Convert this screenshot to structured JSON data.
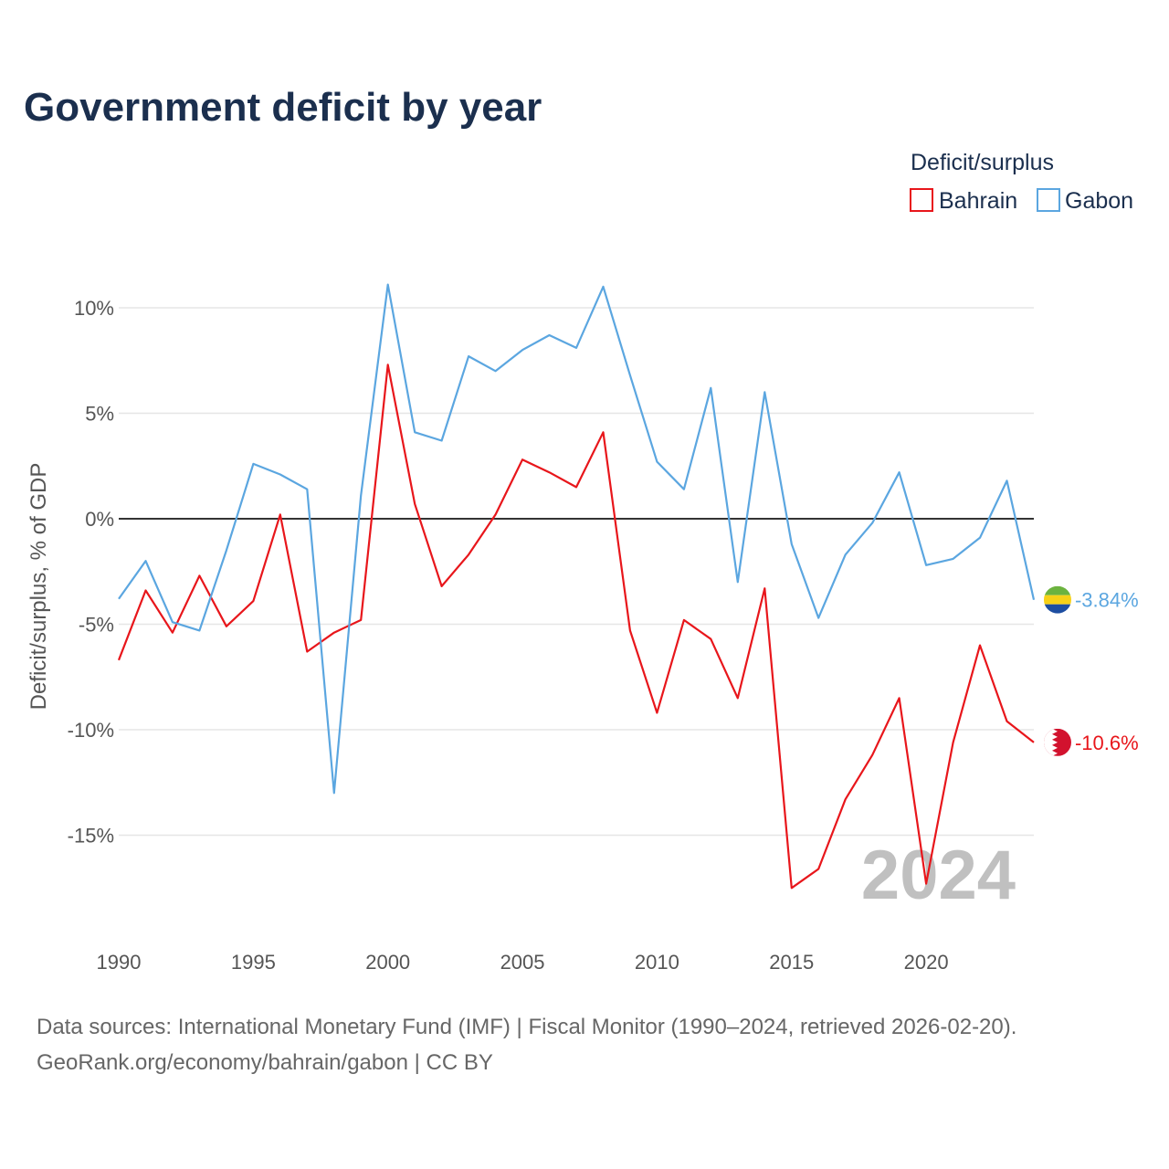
{
  "chart_data": {
    "type": "line",
    "title": "Government deficit by year",
    "ylabel": "Deficit/surplus, % of GDP",
    "xlabel": "",
    "legend_title": "Deficit/surplus",
    "x": [
      1990,
      1991,
      1992,
      1993,
      1994,
      1995,
      1996,
      1997,
      1998,
      1999,
      2000,
      2001,
      2002,
      2003,
      2004,
      2005,
      2006,
      2007,
      2008,
      2009,
      2010,
      2011,
      2012,
      2013,
      2014,
      2015,
      2016,
      2017,
      2018,
      2019,
      2020,
      2021,
      2022,
      2023,
      2024
    ],
    "xlim": [
      1990,
      2024
    ],
    "ylim": [
      -19,
      12
    ],
    "x_ticks": [
      "1990",
      "1995",
      "2000",
      "2005",
      "2010",
      "2015",
      "2020"
    ],
    "y_ticks": [
      "10%",
      "5%",
      "0%",
      "-5%",
      "-10%",
      "-15%"
    ],
    "series": [
      {
        "name": "Bahrain",
        "color": "#e8161b",
        "values": [
          -6.7,
          -3.4,
          -5.4,
          -2.7,
          -5.1,
          -3.9,
          0.2,
          -6.3,
          -5.4,
          -4.8,
          7.3,
          0.7,
          -3.2,
          -1.7,
          0.2,
          2.8,
          2.2,
          1.5,
          4.1,
          -5.3,
          -9.2,
          -4.8,
          -5.7,
          -8.5,
          -3.3,
          -17.5,
          -16.6,
          -13.3,
          -11.2,
          -8.5,
          -17.3,
          -10.6,
          -6.0,
          -9.6,
          -10.6
        ],
        "end_label": "-10.6%"
      },
      {
        "name": "Gabon",
        "color": "#5ba6e0",
        "values": [
          -3.8,
          -2.0,
          -4.9,
          -5.3,
          -1.5,
          2.6,
          2.1,
          1.4,
          -13.0,
          1.1,
          11.1,
          4.1,
          3.7,
          7.7,
          7.0,
          8.0,
          8.7,
          8.1,
          11.0,
          6.8,
          2.7,
          1.4,
          6.2,
          -3.0,
          6.0,
          -1.2,
          -4.7,
          -1.7,
          -0.2,
          2.2,
          -2.2,
          -1.9,
          -0.9,
          1.8,
          -3.84
        ],
        "end_label": "-3.84%"
      }
    ],
    "watermark_year": "2024"
  },
  "source": {
    "line1": "Data sources: International Monetary Fund (IMF) | Fiscal Monitor (1990–2024, retrieved 2026-02-20).",
    "line2": "GeoRank.org/economy/bahrain/gabon | CC BY"
  }
}
